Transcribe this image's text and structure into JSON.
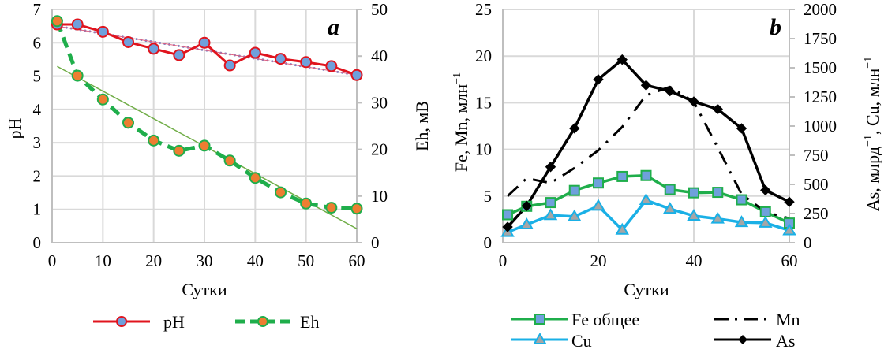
{
  "chart_data": [
    {
      "type": "line",
      "panel": "a",
      "title": "a",
      "xlabel": "Сутки",
      "ylabel": "pH",
      "y2label": "Eh, мВ",
      "x": [
        1,
        5,
        10,
        15,
        20,
        25,
        30,
        35,
        40,
        45,
        50,
        55,
        60
      ],
      "xlim": [
        0,
        60
      ],
      "xticks": [
        0,
        10,
        20,
        30,
        40,
        50,
        60
      ],
      "ylim": [
        0,
        7
      ],
      "yticks": [
        0,
        1,
        2,
        3,
        4,
        5,
        6,
        7
      ],
      "y2lim": [
        0,
        50
      ],
      "y2ticks": [
        0,
        10,
        20,
        30,
        40,
        50
      ],
      "grid": true,
      "legend_position": "bottom",
      "series": [
        {
          "name": "pH",
          "axis": "left",
          "color": "#e0141e",
          "marker": "circle",
          "marker_fill": "#6fa0dc",
          "dash": "solid",
          "values": [
            6.55,
            6.55,
            6.33,
            6.02,
            5.82,
            5.63,
            6.0,
            5.32,
            5.7,
            5.52,
            5.42,
            5.3,
            5.03
          ]
        },
        {
          "name": "Eh",
          "axis": "right",
          "color": "#1fae4b",
          "marker": "circle",
          "marker_fill": "#ed7d31",
          "dash": "dashed",
          "values": [
            47.5,
            35.8,
            30.7,
            25.7,
            21.9,
            19.7,
            20.8,
            17.6,
            13.9,
            10.8,
            8.4,
            7.5,
            7.3
          ]
        }
      ],
      "trendlines": [
        {
          "of": "pH",
          "axis": "left",
          "color": "#7f7fbf",
          "style": "dotted",
          "from": [
            1,
            6.5
          ],
          "to": [
            60,
            5.03
          ]
        },
        {
          "of": "Eh",
          "axis": "right",
          "color": "#70ad47",
          "style": "solid",
          "from": [
            1,
            37.8
          ],
          "to": [
            60,
            3.0
          ]
        }
      ]
    },
    {
      "type": "line",
      "panel": "b",
      "title": "b",
      "xlabel": "Сутки",
      "ylabel": "Fe, Mn, млн",
      "ylabel_sup": "−1",
      "y2label_parts": [
        "As, млрд",
        "−1",
        ", Cu, млн",
        "−1"
      ],
      "x": [
        1,
        5,
        10,
        15,
        20,
        25,
        30,
        35,
        40,
        45,
        50,
        55,
        60
      ],
      "xlim": [
        0,
        60
      ],
      "xticks": [
        0,
        20,
        40,
        60
      ],
      "ylim": [
        0,
        25
      ],
      "yticks": [
        0,
        5,
        10,
        15,
        20,
        25
      ],
      "y2lim": [
        0,
        2000
      ],
      "y2ticks": [
        0,
        250,
        500,
        750,
        1000,
        1250,
        1500,
        1750,
        2000
      ],
      "grid": true,
      "legend_position": "bottom",
      "series": [
        {
          "name": "Fe общее",
          "axis": "left",
          "color": "#1fae4b",
          "marker": "square",
          "marker_fill": "#6fa0dc",
          "dash": "solid",
          "values": [
            3.0,
            3.9,
            4.3,
            5.6,
            6.4,
            7.1,
            7.2,
            5.7,
            5.35,
            5.4,
            4.6,
            3.3,
            2.1
          ]
        },
        {
          "name": "Mn",
          "axis": "left",
          "color": "#000000",
          "marker": "none",
          "dash": "dashdot",
          "values": [
            5.0,
            6.9,
            6.4,
            8.0,
            9.9,
            12.4,
            15.8,
            16.7,
            15.1,
            10.2,
            5.2,
            3.3,
            2.6
          ]
        },
        {
          "name": "Cu",
          "axis": "right",
          "color": "#1ab0e6",
          "marker": "triangle",
          "marker_fill": "#a6a6a6",
          "dash": "solid",
          "values": [
            90,
            155,
            235,
            225,
            315,
            110,
            365,
            290,
            230,
            205,
            175,
            170,
            105
          ]
        },
        {
          "name": "As",
          "axis": "right",
          "color": "#000000",
          "marker": "diamond",
          "marker_fill": "#000000",
          "dash": "solid",
          "values": [
            135,
            315,
            650,
            980,
            1400,
            1570,
            1350,
            1300,
            1210,
            1145,
            980,
            450,
            350
          ]
        }
      ]
    }
  ],
  "legend_a": [
    {
      "label": "pH",
      "series": "pH"
    },
    {
      "label": "Eh",
      "series": "Eh"
    }
  ],
  "legend_b": [
    {
      "label": "Fe общее",
      "series": "Fe общее"
    },
    {
      "label": "Mn",
      "series": "Mn"
    },
    {
      "label": "Cu",
      "series": "Cu"
    },
    {
      "label": "As",
      "series": "As"
    }
  ]
}
